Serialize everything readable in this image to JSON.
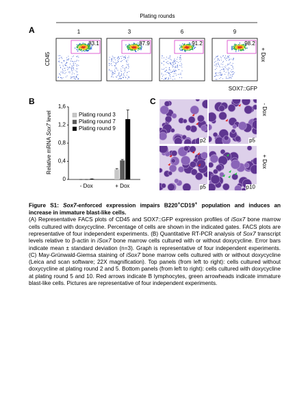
{
  "panel_a": {
    "letter": "A",
    "header": "Plating rounds",
    "y_label": "CD45",
    "x_label": "SOX7::GFP",
    "side_label": "+ Dox",
    "plots": [
      {
        "round": 1,
        "gate": 83.1
      },
      {
        "round": 3,
        "gate": 87.9
      },
      {
        "round": 6,
        "gate": 91.2
      },
      {
        "round": 9,
        "gate": 98.2
      }
    ]
  },
  "chart_data": {
    "type": "bar",
    "letter": "B",
    "y_label": [
      "Relative mRNA ",
      "Sox7",
      " level"
    ],
    "categories": [
      "- Dox",
      "+ Dox"
    ],
    "series": [
      {
        "name": "Plating round 3",
        "color": "#c8c8c8",
        "values": [
          0,
          0.22
        ],
        "errors": [
          0,
          0.02
        ]
      },
      {
        "name": "Plating round 7",
        "color": "#5a5a5a",
        "values": [
          0,
          0.42
        ],
        "errors": [
          0,
          0.02
        ]
      },
      {
        "name": "Plating round 9",
        "color": "#000000",
        "values": [
          0.01,
          1.33
        ],
        "errors": [
          0.003,
          0.2
        ]
      }
    ],
    "ylim": [
      0,
      1.6
    ],
    "yticks": [
      0,
      {
        "value": 0.4,
        "label": "0,4"
      },
      {
        "value": 0.8,
        "label": "0,8"
      },
      {
        "value": 1.2,
        "label": "1,2"
      },
      {
        "value": 1.6,
        "label": "1,6"
      }
    ],
    "legend": "upper left"
  },
  "panel_c": {
    "letter": "C",
    "top_label": "- Dox",
    "bottom_label": "+ Dox",
    "images": [
      "p2",
      "p5",
      "p5",
      "p10"
    ]
  },
  "caption": {
    "title": [
      "Figure S1: ",
      "Sox7",
      "-enforced expression impairs B220",
      "+",
      "CD19",
      "+",
      " population and induces an increase in immature blast-like cells."
    ],
    "body": [
      "(A) Representative FACS plots of CD45 and SOX7::GFP expression profiles of ",
      "iSox7",
      " bone marrow cells cultured with doxycycline. Percentage of cells are shown in the indicated gates. FACS plots are representative of four independent experiments. (B) Quantitative RT-PCR analysis of ",
      "Sox7",
      " transcript levels relative to β-actin in ",
      "iSox7",
      " bone marrow cells cultured with or without doxycycline. Error bars indicate mean ± standard deviation (n=3). Graph is representative of four independent experiments. (C) May-Grünwald-Giemsa staining of ",
      "iSox7",
      " bone marrow cells cultured with or without doxycycline (Leica and scan software; 22X magnification). Top panels (from left to right): cells cultured without doxycycline at plating round 2 and 5. Bottom panels (from left to right): cells cultured with doxycycline at plating round 5 and 10. Red arrows indicate B lymphocytes, green arrowheads indicate immature blast-like cells. Pictures are representative of four independent experiments."
    ]
  }
}
